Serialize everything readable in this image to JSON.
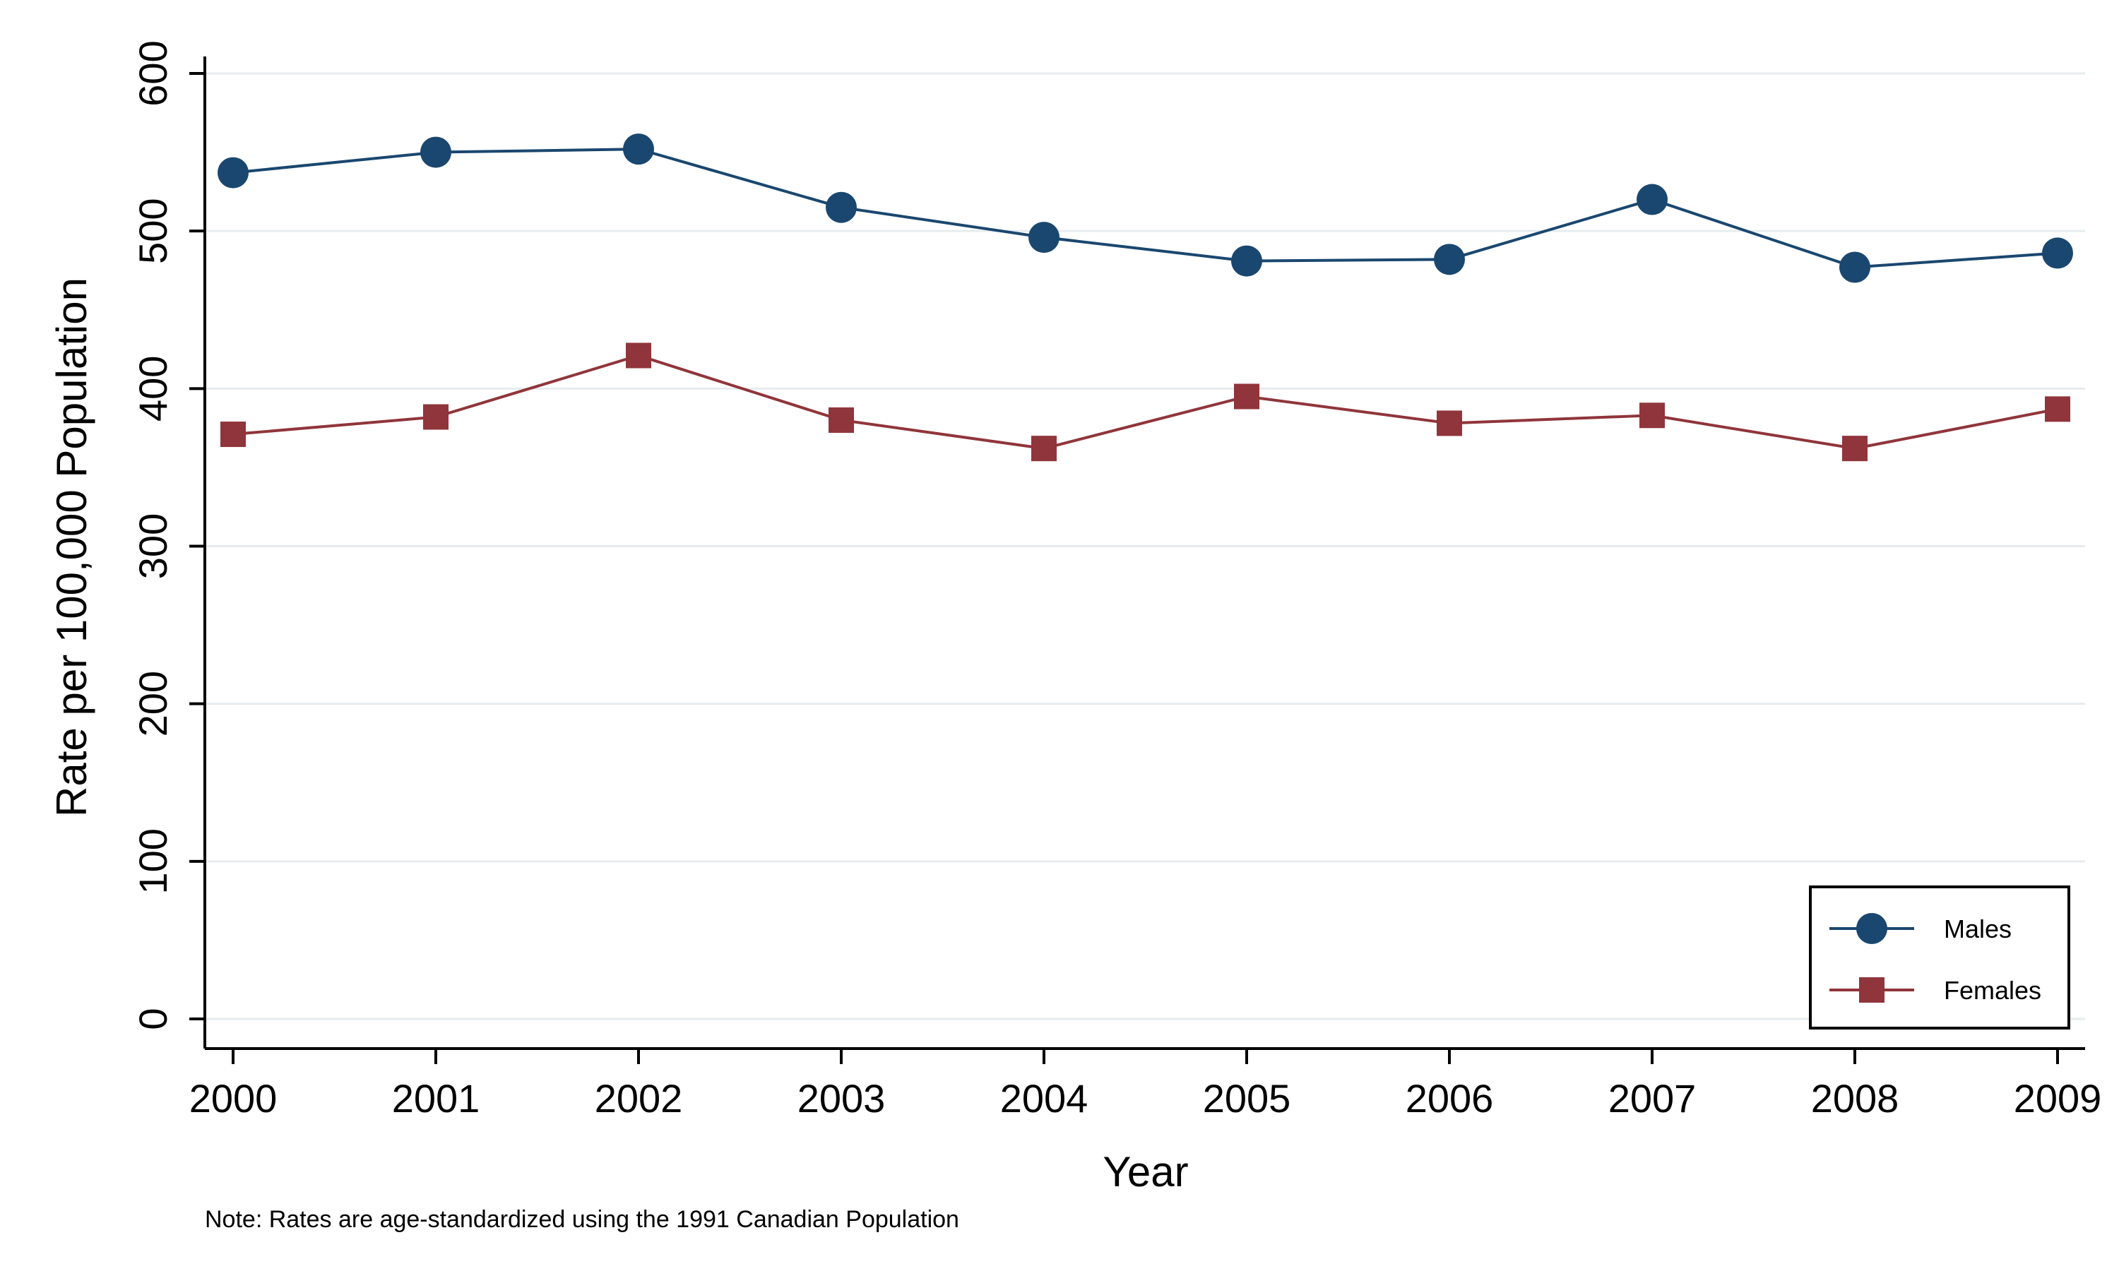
{
  "chart_data": {
    "type": "line",
    "x": [
      2000,
      2001,
      2002,
      2003,
      2004,
      2005,
      2006,
      2007,
      2008,
      2009
    ],
    "series": [
      {
        "name": "Males",
        "color": "#1a476f",
        "marker": "circle",
        "values": [
          537,
          550,
          552,
          515,
          496,
          481,
          482,
          520,
          477,
          486
        ]
      },
      {
        "name": "Females",
        "color": "#90353b",
        "marker": "square",
        "values": [
          371,
          382,
          421,
          380,
          362,
          395,
          378,
          383,
          362,
          387
        ]
      }
    ],
    "xlabel": "Year",
    "ylabel": "Rate per 100,000 Population",
    "ylim": [
      0,
      600
    ],
    "yticks": [
      0,
      100,
      200,
      300,
      400,
      500,
      600
    ],
    "xticks": [
      2000,
      2001,
      2002,
      2003,
      2004,
      2005,
      2006,
      2007,
      2008,
      2009
    ],
    "grid": true,
    "legend_position": "bottom-right",
    "note": "Note: Rates are age-standardized using the 1991 Canadian Population"
  }
}
